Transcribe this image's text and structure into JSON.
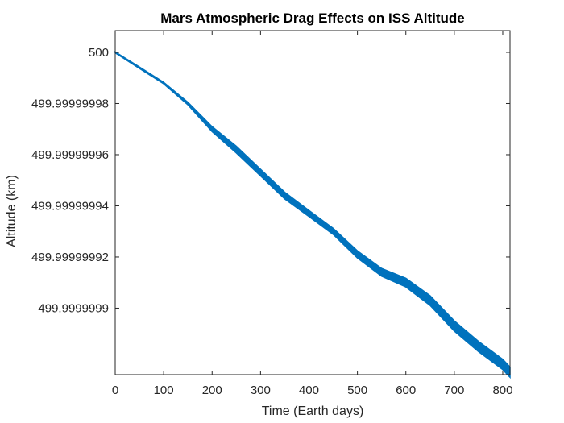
{
  "chart_data": {
    "type": "line",
    "title": "Mars Atmospheric Drag Effects on ISS Altitude",
    "xlabel": "Time (Earth days)",
    "ylabel": "Altitude (km)",
    "xlim": [
      0,
      815
    ],
    "ylim": [
      499.999999874,
      500.0000000085
    ],
    "x_ticks": [
      0,
      100,
      200,
      300,
      400,
      500,
      600,
      700,
      800
    ],
    "x_tick_labels": [
      "0",
      "100",
      "200",
      "300",
      "400",
      "500",
      "600",
      "700",
      "800"
    ],
    "y_ticks": [
      499.9999999,
      499.99999992,
      499.99999994,
      499.99999996,
      499.99999998,
      500
    ],
    "y_tick_labels": [
      "499.9999999",
      "499.99999992",
      "499.99999994",
      "499.99999996",
      "499.99999998",
      "500"
    ],
    "grid": false,
    "series_color": "#0072BD",
    "series": [
      {
        "x": [
          0,
          50,
          100,
          150,
          200,
          250,
          300,
          350,
          400,
          450,
          500,
          550,
          600,
          650,
          700,
          750,
          800,
          815
        ],
        "y": [
          500,
          499.999999994,
          499.999999988,
          499.99999998,
          499.99999997,
          499.999999962,
          499.999999953,
          499.999999944,
          499.999999937,
          499.99999993,
          499.999999921,
          499.999999914,
          499.99999991,
          499.999999903,
          499.999999893,
          499.999999885,
          499.999999878,
          499.999999875
        ],
        "band_half_width": [
          2e-10,
          3e-10,
          3e-10,
          5e-10,
          1e-09,
          1.3e-09,
          1.3e-09,
          1.3e-09,
          1.2e-09,
          1.2e-09,
          1.4e-09,
          1.5e-09,
          1.7e-09,
          1.9e-09,
          2e-09,
          2e-09,
          2e-09,
          2e-09
        ]
      }
    ]
  }
}
